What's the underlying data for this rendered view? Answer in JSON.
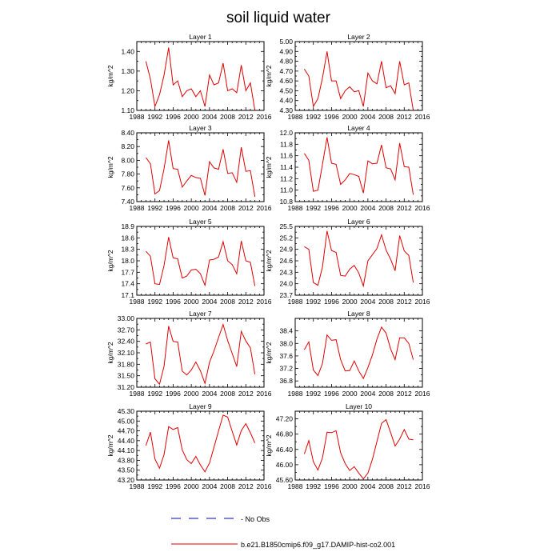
{
  "figure": {
    "title": "soil liquid water",
    "legend": [
      {
        "label": "No Obs",
        "color": "#0000cc",
        "dash": true
      },
      {
        "label": "b.e21.B1850cmip6.f09_g17.DAMIP-hist-co2.001",
        "color": "#e00000",
        "dash": false
      }
    ]
  },
  "chart_data": [
    {
      "type": "line",
      "title": "Layer 1",
      "ylabel": "kg/m^2",
      "xlim": [
        1988,
        2016
      ],
      "xticks": [
        1988,
        1992,
        1996,
        2000,
        2004,
        2008,
        2012,
        2016
      ],
      "ylim": [
        1.1,
        1.45
      ],
      "yticks": [
        1.1,
        1.2,
        1.3,
        1.4
      ],
      "ydecimals": 2,
      "series": [
        {
          "color": "#e00000",
          "x": [
            1990,
            1991,
            1992,
            1993,
            1994,
            1995,
            1996,
            1997,
            1998,
            1999,
            2000,
            2001,
            2002,
            2003,
            2004,
            2005,
            2006,
            2007,
            2008,
            2009,
            2010,
            2011,
            2012,
            2013,
            2014
          ],
          "y": [
            1.35,
            1.26,
            1.12,
            1.18,
            1.28,
            1.42,
            1.23,
            1.25,
            1.17,
            1.2,
            1.21,
            1.17,
            1.2,
            1.12,
            1.28,
            1.23,
            1.24,
            1.34,
            1.2,
            1.21,
            1.19,
            1.33,
            1.2,
            1.24,
            1.1
          ]
        }
      ]
    },
    {
      "type": "line",
      "title": "Layer 2",
      "ylabel": "kg/m^2",
      "xlim": [
        1988,
        2016
      ],
      "xticks": [
        1988,
        1992,
        1996,
        2000,
        2004,
        2008,
        2012,
        2016
      ],
      "ylim": [
        4.3,
        5.0
      ],
      "yticks": [
        4.3,
        4.4,
        4.5,
        4.6,
        4.7,
        4.8,
        4.9,
        5.0
      ],
      "ydecimals": 2,
      "series": [
        {
          "color": "#e00000",
          "x": [
            1990,
            1991,
            1992,
            1993,
            1994,
            1995,
            1996,
            1997,
            1998,
            1999,
            2000,
            2001,
            2002,
            2003,
            2004,
            2005,
            2006,
            2007,
            2008,
            2009,
            2010,
            2011,
            2012,
            2013,
            2014
          ],
          "y": [
            4.72,
            4.65,
            4.34,
            4.42,
            4.63,
            4.9,
            4.6,
            4.6,
            4.42,
            4.5,
            4.54,
            4.49,
            4.5,
            4.34,
            4.68,
            4.6,
            4.57,
            4.8,
            4.53,
            4.55,
            4.47,
            4.8,
            4.56,
            4.58,
            4.3
          ]
        }
      ]
    },
    {
      "type": "line",
      "title": "Layer 3",
      "ylabel": "kg/m^2",
      "xlim": [
        1988,
        2016
      ],
      "xticks": [
        1988,
        1992,
        1996,
        2000,
        2004,
        2008,
        2012,
        2016
      ],
      "ylim": [
        7.4,
        8.4
      ],
      "yticks": [
        7.4,
        7.6,
        7.8,
        8.0,
        8.2,
        8.4
      ],
      "ydecimals": 2,
      "series": [
        {
          "color": "#e00000",
          "x": [
            1990,
            1991,
            1992,
            1993,
            1994,
            1995,
            1996,
            1997,
            1998,
            1999,
            2000,
            2001,
            2002,
            2003,
            2004,
            2005,
            2006,
            2007,
            2008,
            2009,
            2010,
            2011,
            2012,
            2013,
            2014
          ],
          "y": [
            8.04,
            7.95,
            7.51,
            7.56,
            7.88,
            8.29,
            7.88,
            7.87,
            7.61,
            7.7,
            7.78,
            7.75,
            7.74,
            7.49,
            7.98,
            7.89,
            7.87,
            8.16,
            7.81,
            7.82,
            7.68,
            8.19,
            7.84,
            7.85,
            7.47
          ]
        }
      ]
    },
    {
      "type": "line",
      "title": "Layer 4",
      "ylabel": "kg/m^2",
      "xlim": [
        1988,
        2016
      ],
      "xticks": [
        1988,
        1992,
        1996,
        2000,
        2004,
        2008,
        2012,
        2016
      ],
      "ylim": [
        10.8,
        12.0
      ],
      "yticks": [
        10.8,
        11.0,
        11.2,
        11.4,
        11.6,
        11.8,
        12.0
      ],
      "ydecimals": 1,
      "series": [
        {
          "color": "#e00000",
          "x": [
            1990,
            1991,
            1992,
            1993,
            1994,
            1995,
            1996,
            1997,
            1998,
            1999,
            2000,
            2001,
            2002,
            2003,
            2004,
            2005,
            2006,
            2007,
            2008,
            2009,
            2010,
            2011,
            2012,
            2013,
            2014
          ],
          "y": [
            11.64,
            11.52,
            10.98,
            11.0,
            11.45,
            11.92,
            11.47,
            11.45,
            11.1,
            11.18,
            11.29,
            11.27,
            11.24,
            10.95,
            11.51,
            11.46,
            11.47,
            11.79,
            11.39,
            11.37,
            11.18,
            11.82,
            11.41,
            11.4,
            10.92
          ]
        }
      ]
    },
    {
      "type": "line",
      "title": "Layer 5",
      "ylabel": "kg/m^2",
      "xlim": [
        1988,
        2016
      ],
      "xticks": [
        1988,
        1992,
        1996,
        2000,
        2004,
        2008,
        2012,
        2016
      ],
      "ylim": [
        17.1,
        18.9
      ],
      "yticks": [
        17.1,
        17.4,
        17.7,
        18.0,
        18.3,
        18.6,
        18.9
      ],
      "ydecimals": 1,
      "series": [
        {
          "color": "#e00000",
          "x": [
            1990,
            1991,
            1992,
            1993,
            1994,
            1995,
            1996,
            1997,
            1998,
            1999,
            2000,
            2001,
            2002,
            2003,
            2004,
            2005,
            2006,
            2007,
            2008,
            2009,
            2010,
            2011,
            2012,
            2013,
            2014
          ],
          "y": [
            18.25,
            18.12,
            17.4,
            17.38,
            17.88,
            18.62,
            18.08,
            18.05,
            17.55,
            17.6,
            17.76,
            17.78,
            17.66,
            17.36,
            18.02,
            18.04,
            18.1,
            18.5,
            18.0,
            17.9,
            17.66,
            18.52,
            18.0,
            17.96,
            17.34
          ]
        }
      ]
    },
    {
      "type": "line",
      "title": "Layer 6",
      "ylabel": "kg/m^2",
      "xlim": [
        1988,
        2016
      ],
      "xticks": [
        1988,
        1992,
        1996,
        2000,
        2004,
        2008,
        2012,
        2016
      ],
      "ylim": [
        23.7,
        25.5
      ],
      "yticks": [
        23.7,
        24.0,
        24.3,
        24.6,
        24.9,
        25.2,
        25.5
      ],
      "ydecimals": 1,
      "series": [
        {
          "color": "#e00000",
          "x": [
            1990,
            1991,
            1992,
            1993,
            1994,
            1995,
            1996,
            1997,
            1998,
            1999,
            2000,
            2001,
            2002,
            2003,
            2004,
            2005,
            2006,
            2007,
            2008,
            2009,
            2010,
            2011,
            2012,
            2013,
            2014
          ],
          "y": [
            24.97,
            24.9,
            24.03,
            23.96,
            24.44,
            25.38,
            24.87,
            24.82,
            24.22,
            24.2,
            24.38,
            24.48,
            24.28,
            23.94,
            24.6,
            24.76,
            24.92,
            25.28,
            24.88,
            24.64,
            24.34,
            25.26,
            24.86,
            24.74,
            24.03
          ]
        }
      ]
    },
    {
      "type": "line",
      "title": "Layer 7",
      "ylabel": "kg/m^2",
      "xlim": [
        1988,
        2016
      ],
      "xticks": [
        1988,
        1992,
        1996,
        2000,
        2004,
        2008,
        2012,
        2016
      ],
      "ylim": [
        31.2,
        33.0
      ],
      "yticks": [
        31.2,
        31.5,
        31.8,
        32.1,
        32.4,
        32.7,
        33.0
      ],
      "ydecimals": 2,
      "series": [
        {
          "color": "#e00000",
          "x": [
            1990,
            1991,
            1992,
            1993,
            1994,
            1995,
            1996,
            1997,
            1998,
            1999,
            2000,
            2001,
            2002,
            2003,
            2004,
            2005,
            2006,
            2007,
            2008,
            2009,
            2010,
            2011,
            2012,
            2013,
            2014
          ],
          "y": [
            32.33,
            32.38,
            31.42,
            31.28,
            31.75,
            32.8,
            32.4,
            32.38,
            31.62,
            31.52,
            31.65,
            31.86,
            31.63,
            31.3,
            31.85,
            32.15,
            32.5,
            32.84,
            32.42,
            32.08,
            31.74,
            32.66,
            32.41,
            32.23,
            31.54
          ]
        }
      ]
    },
    {
      "type": "line",
      "title": "Layer 8",
      "ylabel": "kg/m^2",
      "xlim": [
        1988,
        2016
      ],
      "xticks": [
        1988,
        1992,
        1996,
        2000,
        2004,
        2008,
        2012,
        2016
      ],
      "ylim": [
        36.6,
        38.8
      ],
      "yticks": [
        36.8,
        37.2,
        37.6,
        38.0,
        38.4
      ],
      "ydecimals": 1,
      "series": [
        {
          "color": "#e00000",
          "x": [
            1990,
            1991,
            1992,
            1993,
            1994,
            1995,
            1996,
            1997,
            1998,
            1999,
            2000,
            2001,
            2002,
            2003,
            2004,
            2005,
            2006,
            2007,
            2008,
            2009,
            2010,
            2011,
            2012,
            2013,
            2014
          ],
          "y": [
            37.8,
            38.05,
            37.15,
            36.97,
            37.36,
            38.27,
            38.1,
            38.12,
            37.48,
            37.12,
            37.13,
            37.44,
            37.12,
            36.88,
            37.23,
            37.63,
            38.14,
            38.52,
            38.33,
            37.82,
            37.48,
            38.18,
            38.18,
            38.0,
            37.48
          ]
        }
      ]
    },
    {
      "type": "line",
      "title": "Layer 9",
      "ylabel": "kg/m^2",
      "xlim": [
        1988,
        2016
      ],
      "xticks": [
        1988,
        1992,
        1996,
        2000,
        2004,
        2008,
        2012,
        2016
      ],
      "ylim": [
        43.2,
        45.3
      ],
      "yticks": [
        43.2,
        43.5,
        43.8,
        44.1,
        44.4,
        44.7,
        45.0,
        45.3
      ],
      "ydecimals": 2,
      "series": [
        {
          "color": "#e00000",
          "x": [
            1990,
            1991,
            1992,
            1993,
            1994,
            1995,
            1996,
            1997,
            1998,
            1999,
            2000,
            2001,
            2002,
            2003,
            2004,
            2005,
            2006,
            2007,
            2008,
            2009,
            2010,
            2011,
            2012,
            2013,
            2014
          ],
          "y": [
            44.25,
            44.66,
            43.84,
            43.56,
            43.98,
            44.83,
            44.74,
            44.8,
            44.12,
            43.82,
            43.7,
            43.92,
            43.66,
            43.45,
            43.72,
            44.2,
            44.7,
            45.18,
            45.12,
            44.68,
            44.27,
            44.71,
            44.92,
            44.64,
            44.33
          ]
        }
      ]
    },
    {
      "type": "line",
      "title": "Layer 10",
      "ylabel": "kg/m^2",
      "xlim": [
        1988,
        2016
      ],
      "xticks": [
        1988,
        1992,
        1996,
        2000,
        2004,
        2008,
        2012,
        2016
      ],
      "ylim": [
        45.6,
        47.4
      ],
      "yticks": [
        45.6,
        46.0,
        46.4,
        46.8,
        47.2
      ],
      "ydecimals": 2,
      "series": [
        {
          "color": "#e00000",
          "x": [
            1990,
            1991,
            1992,
            1993,
            1994,
            1995,
            1996,
            1997,
            1998,
            1999,
            2000,
            2001,
            2002,
            2003,
            2004,
            2005,
            2006,
            2007,
            2008,
            2009,
            2010,
            2011,
            2012,
            2013,
            2014
          ],
          "y": [
            46.28,
            46.63,
            46.08,
            45.86,
            46.18,
            46.85,
            46.84,
            46.89,
            46.31,
            46.03,
            45.85,
            45.95,
            45.78,
            45.63,
            45.78,
            46.14,
            46.61,
            47.08,
            47.18,
            46.84,
            46.49,
            46.67,
            46.92,
            46.67,
            46.65
          ]
        }
      ]
    }
  ]
}
